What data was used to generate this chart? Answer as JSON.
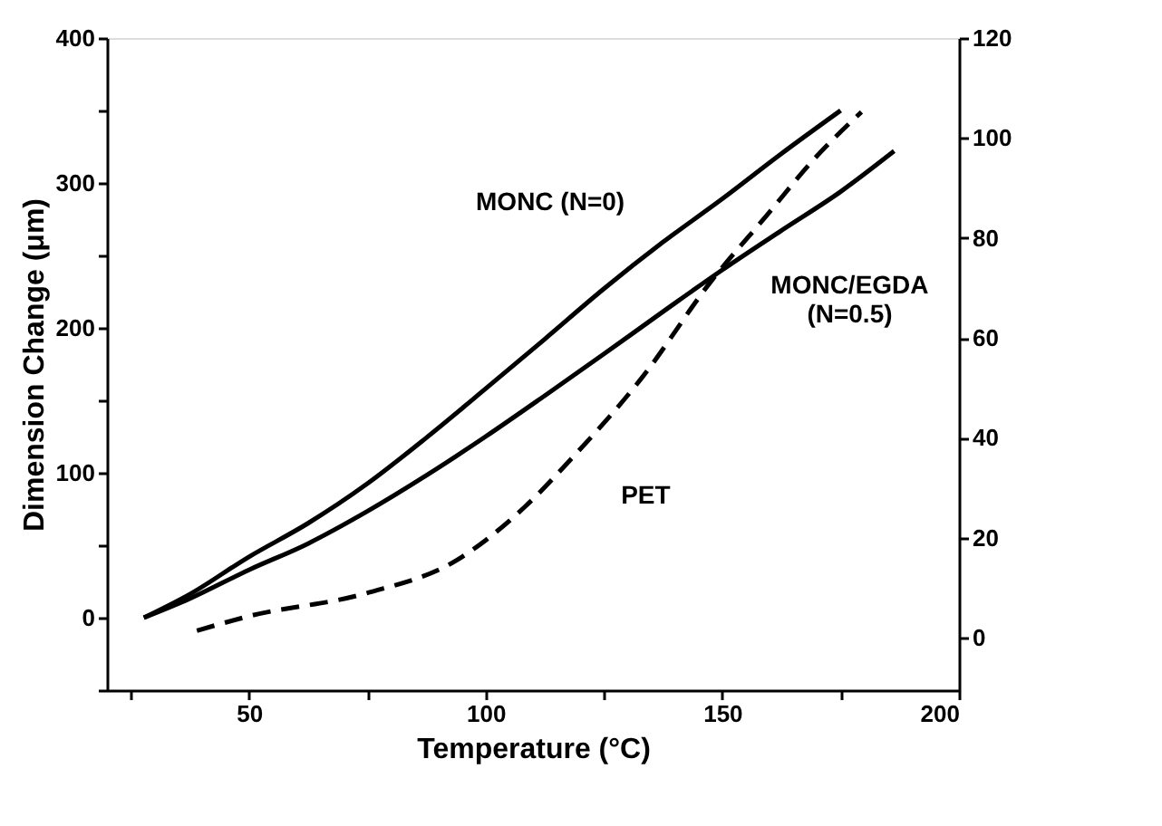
{
  "chart_data": {
    "type": "line",
    "xlabel": "Temperature (°C)",
    "ylabel": "Dimension Change (μm)",
    "xlim": [
      20,
      200
    ],
    "ylim": [
      -50,
      400
    ],
    "y2lim": [
      -10.5,
      120
    ],
    "xticks": [
      {
        "value": 25,
        "label": null
      },
      50,
      {
        "value": 75,
        "label": null
      },
      100,
      {
        "value": 125,
        "label": null
      },
      150,
      {
        "value": 175,
        "label": null
      },
      200
    ],
    "yticks": [
      {
        "value": -50,
        "label": null
      },
      0,
      {
        "value": 50,
        "label": null
      },
      100,
      {
        "value": 150,
        "label": null
      },
      200,
      {
        "value": 250,
        "label": null
      },
      300,
      {
        "value": 350,
        "label": null
      },
      400
    ],
    "y2ticks": [
      0,
      20,
      40,
      60,
      80,
      100,
      120
    ],
    "grid": false,
    "series": [
      {
        "name": "MONC (N=0)",
        "color": "#000000",
        "line_style": "solid",
        "x": [
          27.8,
          37.4,
          50,
          62.4,
          74.8,
          87.4,
          100,
          112.4,
          125,
          137.4,
          150,
          162.4,
          175
        ],
        "values": [
          0,
          16,
          42,
          65,
          92,
          124,
          158,
          192,
          227,
          259,
          289,
          320,
          350
        ]
      },
      {
        "name": "MONC/EGDA (N=0.5)",
        "color": "#000000",
        "line_style": "solid",
        "x": [
          27.8,
          37.4,
          50,
          62.4,
          74.8,
          87.4,
          100,
          112.4,
          125,
          137.4,
          150,
          162.4,
          175,
          186.3
        ],
        "values": [
          0,
          13,
          33,
          51,
          73,
          98,
          125,
          153,
          182,
          211,
          240,
          267,
          294,
          322
        ]
      },
      {
        "name": "PET",
        "color": "#000000",
        "line_style": "dashed",
        "axis": "y2",
        "x": [
          39,
          50,
          74.8,
          93.7,
          108.3,
          118.5,
          133,
          147.7,
          159.3,
          169.5,
          179.4
        ],
        "values": [
          1.4,
          4.3,
          8.9,
          15.4,
          26.2,
          36.2,
          52,
          71.4,
          84.4,
          95.9,
          105.2
        ]
      }
    ]
  }
}
